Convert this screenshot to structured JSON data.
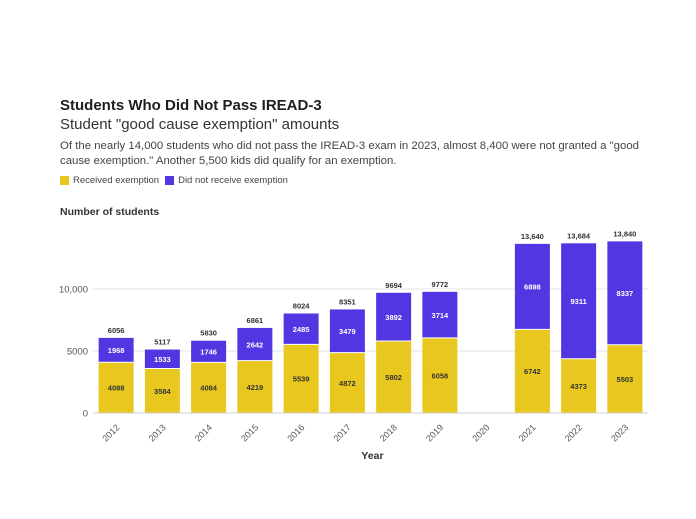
{
  "header": {
    "title": "Students Who Did Not Pass IREAD-3",
    "subtitle": "Student \"good cause exemption\" amounts",
    "description": "Of the nearly 14,000 students who did not pass the IREAD-3 exam in 2023, almost 8,400 were not granted a \"good cause exemption.\" Another 5,500 kids did qualify for an exemption."
  },
  "legend": {
    "received": "Received exemption",
    "not_received": "Did not receive exemption"
  },
  "colors": {
    "received": "#e8c81e",
    "not_received": "#5236e2"
  },
  "chart_data": {
    "type": "bar",
    "stacked": true,
    "title": "Students Who Did Not Pass IREAD-3",
    "xlabel": "Year",
    "ylabel": "Number of students",
    "ylim": [
      0,
      15000
    ],
    "yticks": [
      0,
      5000,
      10000
    ],
    "ytick_labels": [
      "0",
      "5000",
      "10,000"
    ],
    "categories": [
      "2012",
      "2013",
      "2014",
      "2015",
      "2016",
      "2017",
      "2018",
      "2019",
      "2020",
      "2021",
      "2022",
      "2023"
    ],
    "series": [
      {
        "name": "Received exemption",
        "values": [
          4088,
          3584,
          4084,
          4219,
          5539,
          4872,
          5802,
          6058,
          null,
          6742,
          4373,
          5503
        ]
      },
      {
        "name": "Did not receive exemption",
        "values": [
          1968,
          1533,
          1746,
          2642,
          2485,
          3479,
          3892,
          3714,
          null,
          6898,
          9311,
          8337
        ]
      }
    ],
    "totals": [
      "6056",
      "5117",
      "5830",
      "6861",
      "8024",
      "8351",
      "9694",
      "9772",
      "",
      "13,640",
      "13,684",
      "13,840"
    ]
  }
}
